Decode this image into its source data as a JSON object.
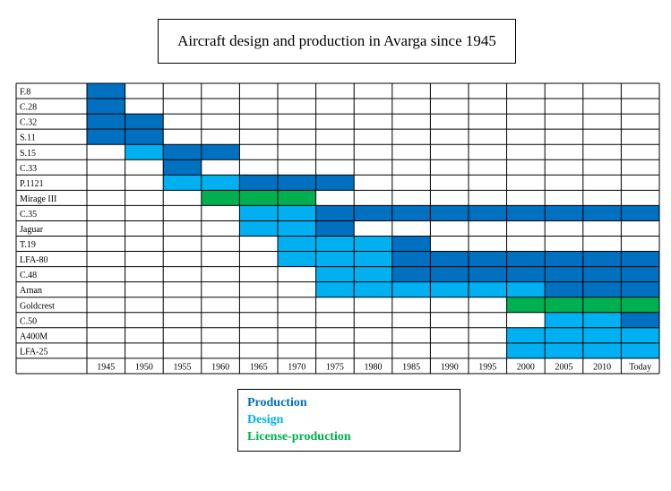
{
  "title": "Aircraft design and production in Avarga since 1945",
  "chart_data": {
    "type": "table",
    "title": "Aircraft design and production in Avarga since 1945",
    "periods": [
      "1945",
      "1950",
      "1955",
      "1960",
      "1965",
      "1970",
      "1975",
      "1980",
      "1985",
      "1990",
      "1995",
      "2000",
      "2005",
      "2010",
      "Today"
    ],
    "colors": {
      "P": "#0070c0",
      "D": "#00b0f0",
      "L": "#00b050",
      "-": "#ffffff"
    },
    "legend": [
      {
        "key": "P",
        "label": "Production",
        "color": "#0070c0"
      },
      {
        "key": "D",
        "label": "Design",
        "color": "#00b0f0"
      },
      {
        "key": "L",
        "label": "License-production",
        "color": "#00b050"
      }
    ],
    "aircraft": [
      {
        "name": "F.8",
        "cells": [
          "P",
          "-",
          "-",
          "-",
          "-",
          "-",
          "-",
          "-",
          "-",
          "-",
          "-",
          "-",
          "-",
          "-",
          "-"
        ]
      },
      {
        "name": "C.28",
        "cells": [
          "P",
          "-",
          "-",
          "-",
          "-",
          "-",
          "-",
          "-",
          "-",
          "-",
          "-",
          "-",
          "-",
          "-",
          "-"
        ]
      },
      {
        "name": "C.32",
        "cells": [
          "P",
          "P",
          "-",
          "-",
          "-",
          "-",
          "-",
          "-",
          "-",
          "-",
          "-",
          "-",
          "-",
          "-",
          "-"
        ]
      },
      {
        "name": "S.11",
        "cells": [
          "P",
          "P",
          "-",
          "-",
          "-",
          "-",
          "-",
          "-",
          "-",
          "-",
          "-",
          "-",
          "-",
          "-",
          "-"
        ]
      },
      {
        "name": "S.15",
        "cells": [
          "-",
          "D",
          "P",
          "P",
          "-",
          "-",
          "-",
          "-",
          "-",
          "-",
          "-",
          "-",
          "-",
          "-",
          "-"
        ]
      },
      {
        "name": "C.33",
        "cells": [
          "-",
          "-",
          "P",
          "-",
          "-",
          "-",
          "-",
          "-",
          "-",
          "-",
          "-",
          "-",
          "-",
          "-",
          "-"
        ]
      },
      {
        "name": "P.1121",
        "cells": [
          "-",
          "-",
          "D",
          "D",
          "P",
          "P",
          "P",
          "-",
          "-",
          "-",
          "-",
          "-",
          "-",
          "-",
          "-"
        ]
      },
      {
        "name": "Mirage III",
        "cells": [
          "-",
          "-",
          "-",
          "L",
          "L",
          "L",
          "-",
          "-",
          "-",
          "-",
          "-",
          "-",
          "-",
          "-",
          "-"
        ]
      },
      {
        "name": "C.35",
        "cells": [
          "-",
          "-",
          "-",
          "-",
          "D",
          "D",
          "P",
          "P",
          "P",
          "P",
          "P",
          "P",
          "P",
          "P",
          "P"
        ]
      },
      {
        "name": "Jaguar",
        "cells": [
          "-",
          "-",
          "-",
          "-",
          "D",
          "D",
          "P",
          "-",
          "-",
          "-",
          "-",
          "-",
          "-",
          "-",
          "-"
        ]
      },
      {
        "name": "T.19",
        "cells": [
          "-",
          "-",
          "-",
          "-",
          "-",
          "D",
          "D",
          "D",
          "P",
          "-",
          "-",
          "-",
          "-",
          "-",
          "-"
        ]
      },
      {
        "name": "LFA-80",
        "cells": [
          "-",
          "-",
          "-",
          "-",
          "-",
          "D",
          "D",
          "D",
          "P",
          "P",
          "P",
          "P",
          "P",
          "P",
          "P"
        ]
      },
      {
        "name": "C.48",
        "cells": [
          "-",
          "-",
          "-",
          "-",
          "-",
          "-",
          "D",
          "D",
          "P",
          "P",
          "P",
          "P",
          "P",
          "P",
          "P"
        ]
      },
      {
        "name": "Arnan",
        "cells": [
          "-",
          "-",
          "-",
          "-",
          "-",
          "-",
          "D",
          "D",
          "D",
          "D",
          "D",
          "D",
          "P",
          "P",
          "P"
        ]
      },
      {
        "name": "Goldcrest",
        "cells": [
          "-",
          "-",
          "-",
          "-",
          "-",
          "-",
          "-",
          "-",
          "-",
          "-",
          "-",
          "L",
          "L",
          "L",
          "L"
        ]
      },
      {
        "name": "C.50",
        "cells": [
          "-",
          "-",
          "-",
          "-",
          "-",
          "-",
          "-",
          "-",
          "-",
          "-",
          "-",
          "-",
          "D",
          "D",
          "P"
        ]
      },
      {
        "name": "A400M",
        "cells": [
          "-",
          "-",
          "-",
          "-",
          "-",
          "-",
          "-",
          "-",
          "-",
          "-",
          "-",
          "D",
          "D",
          "D",
          "D"
        ]
      },
      {
        "name": "LFA-25",
        "cells": [
          "-",
          "-",
          "-",
          "-",
          "-",
          "-",
          "-",
          "-",
          "-",
          "-",
          "-",
          "D",
          "D",
          "D",
          "D"
        ]
      }
    ]
  }
}
